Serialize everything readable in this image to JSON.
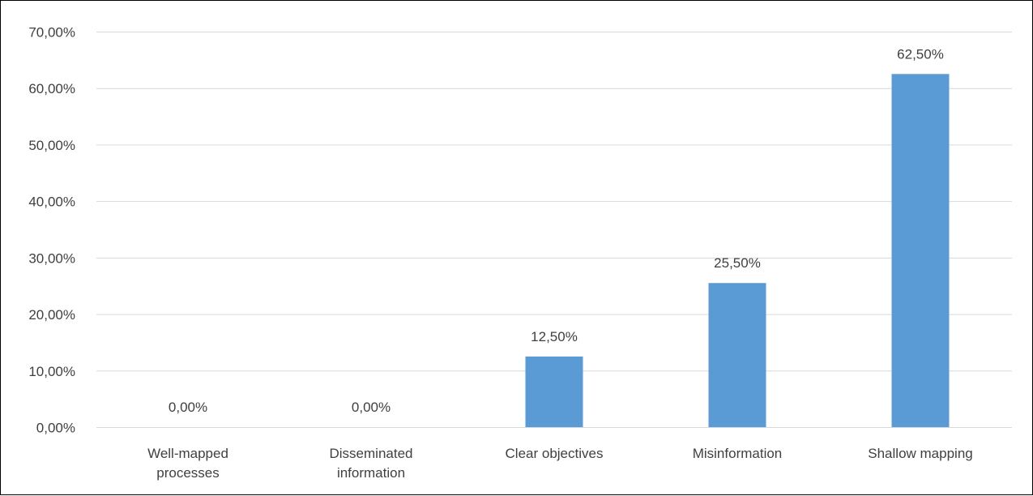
{
  "chart_data": {
    "type": "bar",
    "categories": [
      [
        "Well-mapped",
        "processes"
      ],
      [
        "Disseminated",
        "information"
      ],
      [
        "Clear objectives"
      ],
      [
        "Misinformation"
      ],
      [
        "Shallow mapping"
      ]
    ],
    "values": [
      0.0,
      0.0,
      12.5,
      25.5,
      62.5
    ],
    "value_labels": [
      "0,00%",
      "0,00%",
      "12,50%",
      "25,50%",
      "62,50%"
    ],
    "ylim": [
      0,
      70
    ],
    "yticks": [
      0,
      10,
      20,
      30,
      40,
      50,
      60,
      70
    ],
    "ytick_labels": [
      "0,00%",
      "10,00%",
      "20,00%",
      "30,00%",
      "40,00%",
      "50,00%",
      "60,00%",
      "70,00%"
    ],
    "grid": true,
    "bar_color": "#5B9BD5",
    "grid_color": "#D9D9D9",
    "title": "",
    "xlabel": "",
    "ylabel": ""
  }
}
